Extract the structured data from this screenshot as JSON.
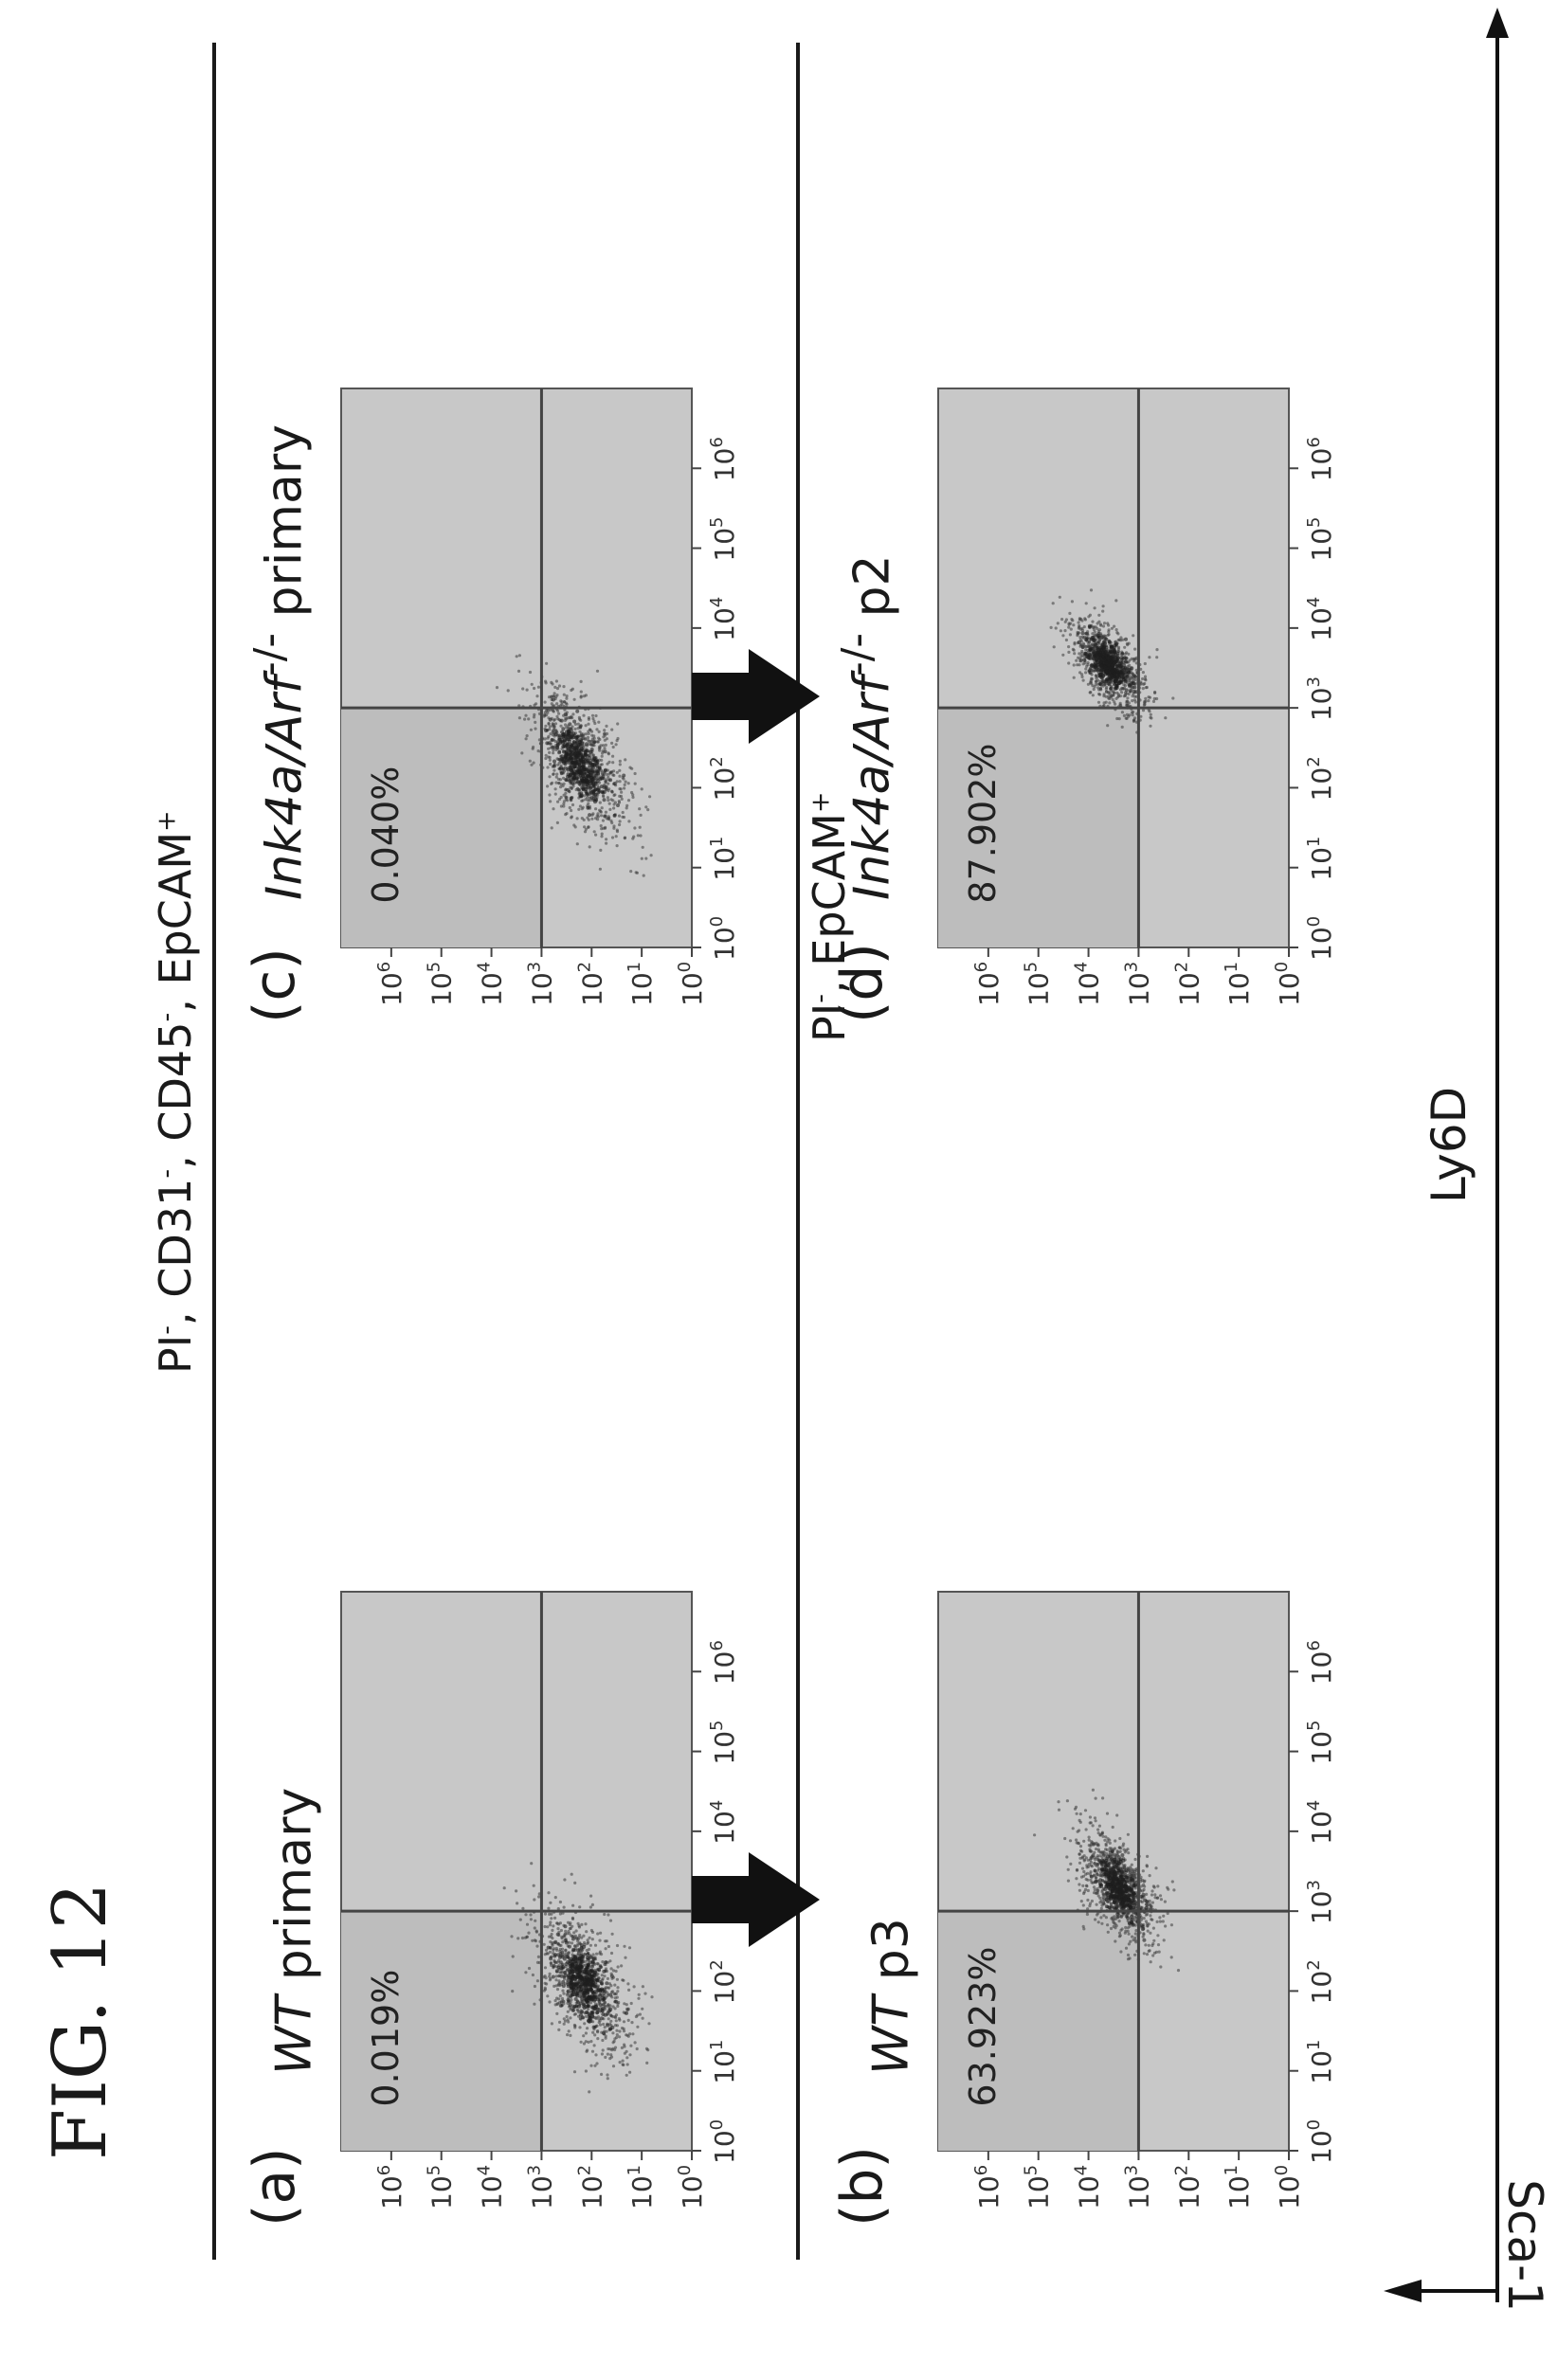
{
  "figure_label": "FIG. 12",
  "top_gate": {
    "prefix": "PI",
    "sup1": "-",
    "p2": ", CD31",
    "sup2": "-",
    "p3": ", CD45",
    "sup3": "-",
    "p4": ", EpCAM",
    "sup4": "+"
  },
  "bottom_gate": {
    "prefix": "PI",
    "sup1": "-",
    "p2": ", EpCAM",
    "sup2": "+"
  },
  "x_axis_label": "Ly6D",
  "y_axis_label": "Sca-1",
  "chart_data": [
    {
      "type": "scatter",
      "panel": "(a)",
      "title": "WT primary",
      "title_parts": {
        "italic": "WT",
        "rest": " primary",
        "sup": ""
      },
      "gated_percent": "0.019%",
      "xlabel": "Ly6D",
      "ylabel": "Sca-1",
      "scale": "log",
      "xlim": [
        1,
        10000000
      ],
      "ylim": [
        1,
        10000000
      ],
      "x_ticks": [
        "10^0",
        "10^1",
        "10^2",
        "10^3",
        "10^4",
        "10^5",
        "10^6"
      ],
      "y_ticks": [
        "10^0",
        "10^1",
        "10^2",
        "10^3",
        "10^4",
        "10^5",
        "10^6"
      ],
      "gate": {
        "x": 1000,
        "y": 1000
      },
      "population": {
        "center_x": 130,
        "center_y": 150,
        "spread_x_decades": 0.45,
        "spread_y_decades": 0.5
      }
    },
    {
      "type": "scatter",
      "panel": "(b)",
      "title": "WT p3",
      "title_parts": {
        "italic": "WT",
        "rest": " p3",
        "sup": ""
      },
      "gated_percent": "63.923%",
      "xlabel": "Ly6D",
      "ylabel": "Sca-1",
      "scale": "log",
      "xlim": [
        1,
        10000000
      ],
      "ylim": [
        1,
        10000000
      ],
      "x_ticks": [
        "10^0",
        "10^1",
        "10^2",
        "10^3",
        "10^4",
        "10^5",
        "10^6"
      ],
      "y_ticks": [
        "10^0",
        "10^1",
        "10^2",
        "10^3",
        "10^4",
        "10^5",
        "10^6"
      ],
      "gate": {
        "x": 1000,
        "y": 1000
      },
      "population": {
        "center_x": 2000,
        "center_y": 2500,
        "spread_x_decades": 0.35,
        "spread_y_decades": 0.4
      }
    },
    {
      "type": "scatter",
      "panel": "(c)",
      "title": "Ink4a/Arf-/- primary",
      "title_parts": {
        "italic": "Ink4a/Arf",
        "rest": " primary",
        "sup": "-/-"
      },
      "gated_percent": "0.040%",
      "xlabel": "Ly6D",
      "ylabel": "Sca-1",
      "scale": "log",
      "xlim": [
        1,
        10000000
      ],
      "ylim": [
        1,
        10000000
      ],
      "x_ticks": [
        "10^0",
        "10^1",
        "10^2",
        "10^3",
        "10^4",
        "10^5",
        "10^6"
      ],
      "y_ticks": [
        "10^0",
        "10^1",
        "10^2",
        "10^3",
        "10^4",
        "10^5",
        "10^6"
      ],
      "gate": {
        "x": 1000,
        "y": 1000
      },
      "population": {
        "center_x": 200,
        "center_y": 170,
        "spread_x_decades": 0.45,
        "spread_y_decades": 0.5
      }
    },
    {
      "type": "scatter",
      "panel": "(d)",
      "title": "Ink4a/Arf-/- p2",
      "title_parts": {
        "italic": "Ink4a/Arf",
        "rest": " p2",
        "sup": "-/-"
      },
      "gated_percent": "87.902%",
      "xlabel": "Ly6D",
      "ylabel": "Sca-1",
      "scale": "log",
      "xlim": [
        1,
        10000000
      ],
      "ylim": [
        1,
        10000000
      ],
      "x_ticks": [
        "10^0",
        "10^1",
        "10^2",
        "10^3",
        "10^4",
        "10^5",
        "10^6"
      ],
      "y_ticks": [
        "10^0",
        "10^1",
        "10^2",
        "10^3",
        "10^4",
        "10^5",
        "10^6"
      ],
      "gate": {
        "x": 1000,
        "y": 1000
      },
      "population": {
        "center_x": 3500,
        "center_y": 4000,
        "spread_x_decades": 0.3,
        "spread_y_decades": 0.38
      }
    }
  ]
}
